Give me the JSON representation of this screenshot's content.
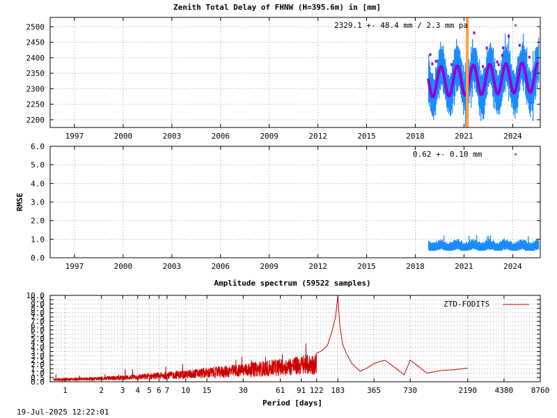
{
  "footer": {
    "timestamp": "19-Jul-2025 12:22:01"
  },
  "chart_data": [
    {
      "type": "scatter",
      "title": "Zenith Total Delay of FHNW (H=395.6m) in [mm]",
      "ylabel": "",
      "xlim": [
        1995.5,
        2025.7
      ],
      "ylim": [
        2175,
        2530
      ],
      "x_ticks": [
        1997,
        2000,
        2003,
        2006,
        2009,
        2012,
        2015,
        2018,
        2021,
        2024
      ],
      "x_tick_labels": [
        "1997",
        "2000",
        "2003",
        "2006",
        "2009",
        "2012",
        "2015",
        "2018",
        "2021",
        "2024"
      ],
      "y_ticks": [
        2200,
        2250,
        2300,
        2350,
        2400,
        2450,
        2500
      ],
      "y_tick_labels": [
        "2200",
        "2250",
        "2300",
        "2350",
        "2400",
        "2450",
        "2500"
      ],
      "grid": true,
      "annotation": "2329.1 +-  48.4 mm /  2.3 mm pa",
      "marker_line_x": 2021.2,
      "data_range": [
        2018.8,
        2025.55
      ],
      "model": {
        "mean": 2329.1,
        "amplitude": 48.4,
        "trend_per_year": 2.3,
        "peak_phase_year": 0.58
      },
      "colors": {
        "data": "#1a8cff",
        "model": "#9400d3",
        "marker": "#ffa040"
      }
    },
    {
      "type": "scatter",
      "title": "",
      "ylabel": "RMSE",
      "xlim": [
        1995.5,
        2025.7
      ],
      "ylim": [
        0,
        6
      ],
      "x_ticks": [
        1997,
        2000,
        2003,
        2006,
        2009,
        2012,
        2015,
        2018,
        2021,
        2024
      ],
      "x_tick_labels": [
        "1997",
        "2000",
        "2003",
        "2006",
        "2009",
        "2012",
        "2015",
        "2018",
        "2021",
        "2024"
      ],
      "y_ticks": [
        0,
        1,
        2,
        3,
        4,
        5,
        6
      ],
      "y_tick_labels": [
        "0.0",
        "1.0",
        "2.0",
        "3.0",
        "4.0",
        "5.0",
        "6.0"
      ],
      "grid": true,
      "annotation": "0.62 +-  0.10 mm",
      "data_range": [
        2018.8,
        2025.55
      ],
      "mean_rmse": 0.62,
      "colors": {
        "data": "#1a8cff"
      }
    },
    {
      "type": "line",
      "title": "Amplitude spectrum (59522 samples)",
      "xlabel": "Period [days]",
      "x_scale": "log",
      "xlim": [
        0.75,
        8760
      ],
      "ylim": [
        0,
        10
      ],
      "x_ticks": [
        1,
        2,
        3,
        4,
        5,
        6,
        7,
        10,
        15,
        30,
        61,
        91,
        122,
        183,
        365,
        730,
        2190,
        4380,
        8760
      ],
      "x_tick_labels": [
        "1",
        "2",
        "3",
        "4",
        "5",
        "6",
        "7",
        "10",
        "15",
        "30",
        "61",
        "91",
        "122",
        "183",
        "365",
        "730",
        "2190",
        "4380",
        "8760"
      ],
      "y_ticks": [
        0,
        0.5,
        1,
        1.5,
        2,
        2.5,
        3,
        3.5,
        4,
        4.5,
        5,
        5.5,
        6,
        6.5,
        7,
        7.5,
        8,
        8.5,
        9,
        9.5,
        10
      ],
      "y_tick_labels": [
        "0.0",
        "0.5",
        "1.0",
        "1.5",
        "2.0",
        "2.5",
        "3.0",
        "3.5",
        "4.0",
        "4.5",
        "5.0",
        "5.5",
        "6.0",
        "6.5",
        "7.0",
        "7.5",
        "8.0",
        "8.5",
        "9.0",
        "9.5",
        "10.0"
      ],
      "grid": true,
      "legend": {
        "position": "top-right"
      },
      "series": [
        {
          "name": "ZTD-FODITS",
          "color": "#cc0000",
          "x": [
            122,
            135,
            150,
            165,
            175,
            183,
            190,
            200,
            215,
            240,
            280,
            320,
            365,
            400,
            450,
            550,
            650,
            730,
            850,
            1000,
            1300,
            1700,
            2190
          ],
          "y": [
            3.3,
            3.6,
            4.2,
            6.0,
            7.5,
            9.9,
            6.6,
            4.4,
            3.3,
            2.1,
            1.2,
            1.6,
            2.1,
            2.3,
            2.5,
            1.6,
            0.8,
            2.5,
            1.8,
            1.0,
            1.3,
            1.4,
            1.6
          ]
        }
      ]
    }
  ]
}
